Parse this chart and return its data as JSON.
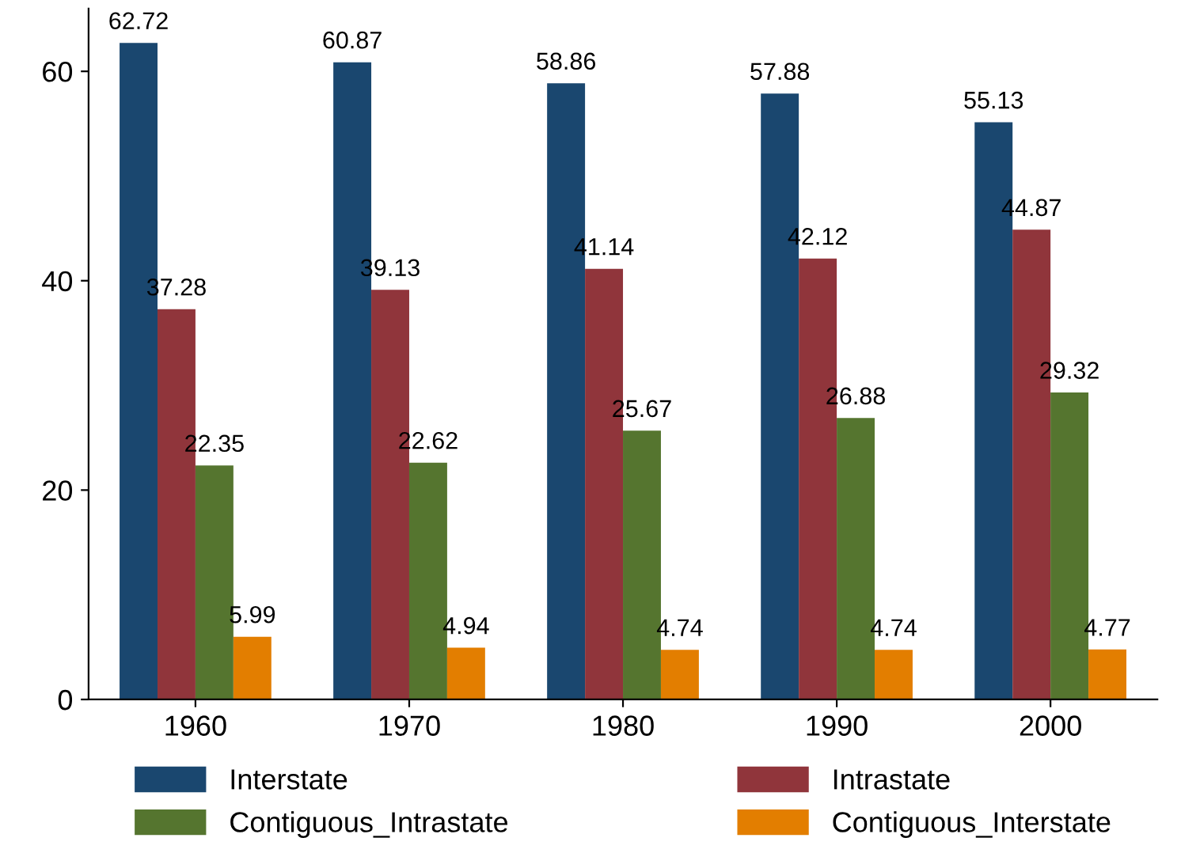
{
  "chart_data": {
    "type": "bar",
    "categories": [
      "1960",
      "1970",
      "1980",
      "1990",
      "2000"
    ],
    "series": [
      {
        "name": "Interstate",
        "color": "#1a476f",
        "values": [
          62.72,
          60.87,
          58.86,
          57.88,
          55.13
        ]
      },
      {
        "name": "Intrastate",
        "color": "#90353b",
        "values": [
          37.28,
          39.13,
          41.14,
          42.12,
          44.87
        ]
      },
      {
        "name": "Contiguous_Intrastate",
        "color": "#55752f",
        "values": [
          22.35,
          22.62,
          25.67,
          26.88,
          29.32
        ]
      },
      {
        "name": "Contiguous_Interstate",
        "color": "#e37e00",
        "values": [
          5.99,
          4.94,
          4.74,
          4.74,
          4.77
        ]
      }
    ],
    "ylim": [
      0,
      66
    ],
    "yticks": [
      0,
      20,
      40,
      60
    ],
    "data_labels": true,
    "grid": false,
    "legend": "bottom"
  }
}
